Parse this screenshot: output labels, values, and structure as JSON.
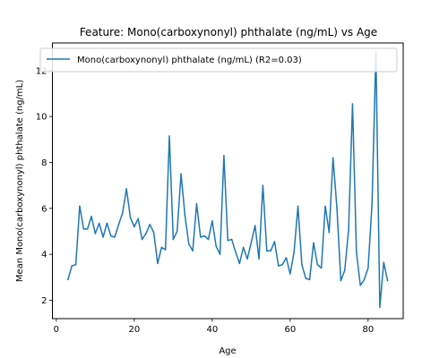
{
  "chart_data": {
    "type": "line",
    "title": "Feature: Mono(carboxynonyl) phthalate (ng/mL) vs Age",
    "xlabel": "Age",
    "ylabel": "Mean Mono(carboxynonyl) phthalate (ng/mL)",
    "xlim": [
      -1,
      89
    ],
    "ylim": [
      1.2,
      13.2
    ],
    "xticks": [
      0,
      20,
      40,
      60,
      80
    ],
    "yticks": [
      2,
      4,
      6,
      8,
      10,
      12
    ],
    "grid": false,
    "legend_position": "top-left",
    "series": [
      {
        "name": "Mono(carboxynonyl) phthalate (ng/mL) (R2=0.03)",
        "color": "#1f77b4",
        "x": [
          3,
          4,
          5,
          6,
          7,
          8,
          9,
          10,
          11,
          12,
          13,
          14,
          15,
          16,
          17,
          18,
          19,
          20,
          21,
          22,
          23,
          24,
          25,
          26,
          27,
          28,
          29,
          30,
          31,
          32,
          33,
          34,
          35,
          36,
          37,
          38,
          39,
          40,
          41,
          42,
          43,
          44,
          45,
          46,
          47,
          48,
          49,
          50,
          51,
          52,
          53,
          54,
          55,
          56,
          57,
          58,
          59,
          60,
          61,
          62,
          63,
          64,
          65,
          66,
          67,
          68,
          69,
          70,
          71,
          72,
          73,
          74,
          75,
          76,
          77,
          78,
          79,
          80,
          81,
          82,
          83,
          84,
          85
        ],
        "y": [
          2.9,
          3.5,
          3.55,
          6.1,
          5.1,
          5.1,
          5.65,
          4.9,
          5.35,
          4.75,
          5.35,
          4.8,
          4.75,
          5.3,
          5.8,
          6.85,
          5.6,
          5.2,
          5.55,
          4.65,
          4.9,
          5.3,
          4.95,
          3.6,
          4.3,
          4.2,
          9.15,
          4.65,
          5.0,
          7.5,
          5.7,
          4.45,
          4.15,
          6.2,
          4.75,
          4.8,
          4.65,
          5.45,
          4.35,
          4.0,
          8.3,
          4.6,
          4.65,
          4.1,
          3.6,
          4.3,
          3.8,
          4.5,
          5.25,
          3.8,
          7.0,
          4.15,
          4.15,
          4.55,
          3.5,
          3.55,
          3.85,
          3.15,
          4.1,
          6.1,
          3.55,
          2.95,
          2.9,
          4.5,
          3.55,
          3.4,
          6.1,
          4.95,
          8.2,
          6.0,
          2.85,
          3.3,
          5.1,
          10.55,
          4.1,
          2.65,
          2.9,
          3.4,
          6.2,
          12.8,
          1.7,
          3.65,
          2.85
        ]
      }
    ]
  }
}
